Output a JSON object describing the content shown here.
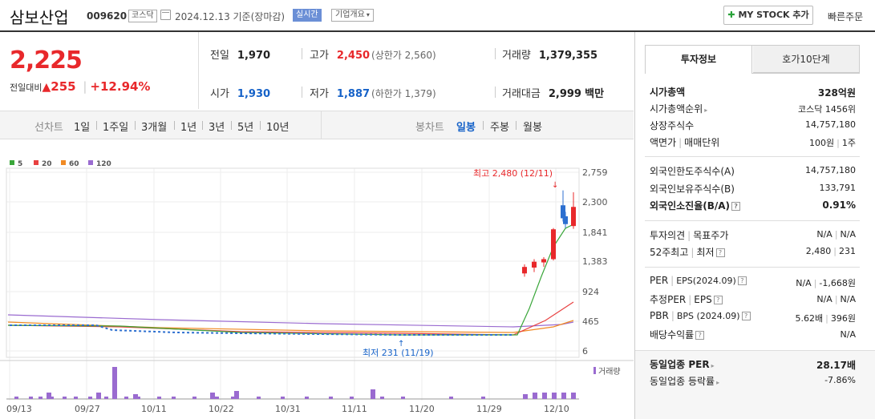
{
  "header": {
    "company_name": "삼보산업",
    "code": "009620",
    "market_badge": "코스닥",
    "date_text": "2024.12.13  기준(장마감)",
    "realtime_badge": "실시간",
    "company_info_btn": "기업개요",
    "mystock_btn": "MY STOCK 추가",
    "quick_order": "빠른주문"
  },
  "price": {
    "current": "2,225",
    "change_label": "전일대비",
    "change_amount": "255",
    "change_rate": "+12.94%"
  },
  "quote": {
    "prev_label": "전일",
    "prev_value": "1,970",
    "high_label": "고가",
    "high_value": "2,450",
    "upper_limit": "(상한가 2,560)",
    "volume_label": "거래량",
    "volume_value": "1,379,355",
    "open_label": "시가",
    "open_value": "1,930",
    "low_label": "저가",
    "low_value": "1,887",
    "lower_limit": "(하한가 1,379)",
    "amount_label": "거래대금",
    "amount_value": "2,999",
    "amount_unit": "백만"
  },
  "period_bar": {
    "line_label": "선차트",
    "line_periods": [
      "1일",
      "1주일",
      "3개월",
      "1년",
      "3년",
      "5년",
      "10년"
    ],
    "candle_label": "봉차트",
    "candle_periods": [
      "일봉",
      "주봉",
      "월봉"
    ],
    "candle_active": "일봉"
  },
  "chart_data": {
    "type": "candlestick",
    "legend": [
      {
        "name": "5",
        "color": "#3aa63a"
      },
      {
        "name": "20",
        "color": "#e84040"
      },
      {
        "name": "60",
        "color": "#f08a24"
      },
      {
        "name": "120",
        "color": "#9a6bd0"
      }
    ],
    "y_ticks": [
      "2,759",
      "2,300",
      "1,841",
      "1,383",
      "924",
      "465",
      "6"
    ],
    "x_ticks": [
      "09/13",
      "09/27",
      "10/11",
      "10/22",
      "10/31",
      "11/11",
      "11/20",
      "11/29",
      "12/10"
    ],
    "high_annotation": "최고 2,480 (12/11)",
    "low_annotation": "최저 231 (11/19)",
    "volume_label": "거래량",
    "ylim": [
      6,
      2759
    ],
    "candles": [
      {
        "o": 1200,
        "h": 1340,
        "l": 1150,
        "c": 1300
      },
      {
        "o": 1290,
        "h": 1420,
        "l": 1220,
        "c": 1380
      },
      {
        "o": 1370,
        "h": 1450,
        "l": 1300,
        "c": 1420
      },
      {
        "o": 1420,
        "h": 1900,
        "l": 1400,
        "c": 1880
      },
      {
        "o": 2250,
        "h": 2480,
        "l": 2000,
        "c": 2050
      },
      {
        "o": 2080,
        "h": 2150,
        "l": 1900,
        "c": 1960
      },
      {
        "o": 1930,
        "h": 2450,
        "l": 1887,
        "c": 2225
      }
    ],
    "volume_spikes": [
      0.2,
      0.2,
      1.0,
      0.15,
      0.2,
      0.25,
      0.3,
      0.15,
      0.2
    ]
  },
  "invest": {
    "tab_invest": "투자정보",
    "tab_orderbook": "호가10단계",
    "mktcap_label": "시가총액",
    "mktcap_value": "328억원",
    "rank_label": "시가총액순위",
    "rank_value": "코스닥 1456위",
    "shares_label": "상장주식수",
    "shares_value": "14,757,180",
    "par_label": "액면가",
    "unit_label": "매매단위",
    "par_value": "100원",
    "unit_value": "1주",
    "foreign_limit_label": "외국인한도주식수(A)",
    "foreign_limit_value": "14,757,180",
    "foreign_hold_label": "외국인보유주식수(B)",
    "foreign_hold_value": "133,791",
    "foreign_ratio_label": "외국인소진율(B/A)",
    "foreign_ratio_value": "0.91%",
    "opinion_label": "투자의견",
    "target_label": "목표주가",
    "opinion_value": "N/A",
    "target_value": "N/A",
    "w52_label": "52주최고",
    "w52_low_label": "최저",
    "w52_high_value": "2,480",
    "w52_low_value": "231",
    "per_label": "PER",
    "eps_label": "EPS(2024.09)",
    "per_value": "N/A",
    "eps_value": "-1,668원",
    "eper_label": "추정PER",
    "eeps_label": "EPS",
    "eper_value": "N/A",
    "eeps_value": "N/A",
    "pbr_label": "PBR",
    "bps_label": "BPS (2024.09)",
    "pbr_value": "5.62배",
    "bps_value": "396원",
    "div_label": "배당수익률",
    "div_value": "N/A",
    "sector_per_label": "동일업종 PER",
    "sector_per_value": "28.17배",
    "sector_rate_label": "동일업종 등락률",
    "sector_rate_value": "-7.86%"
  }
}
